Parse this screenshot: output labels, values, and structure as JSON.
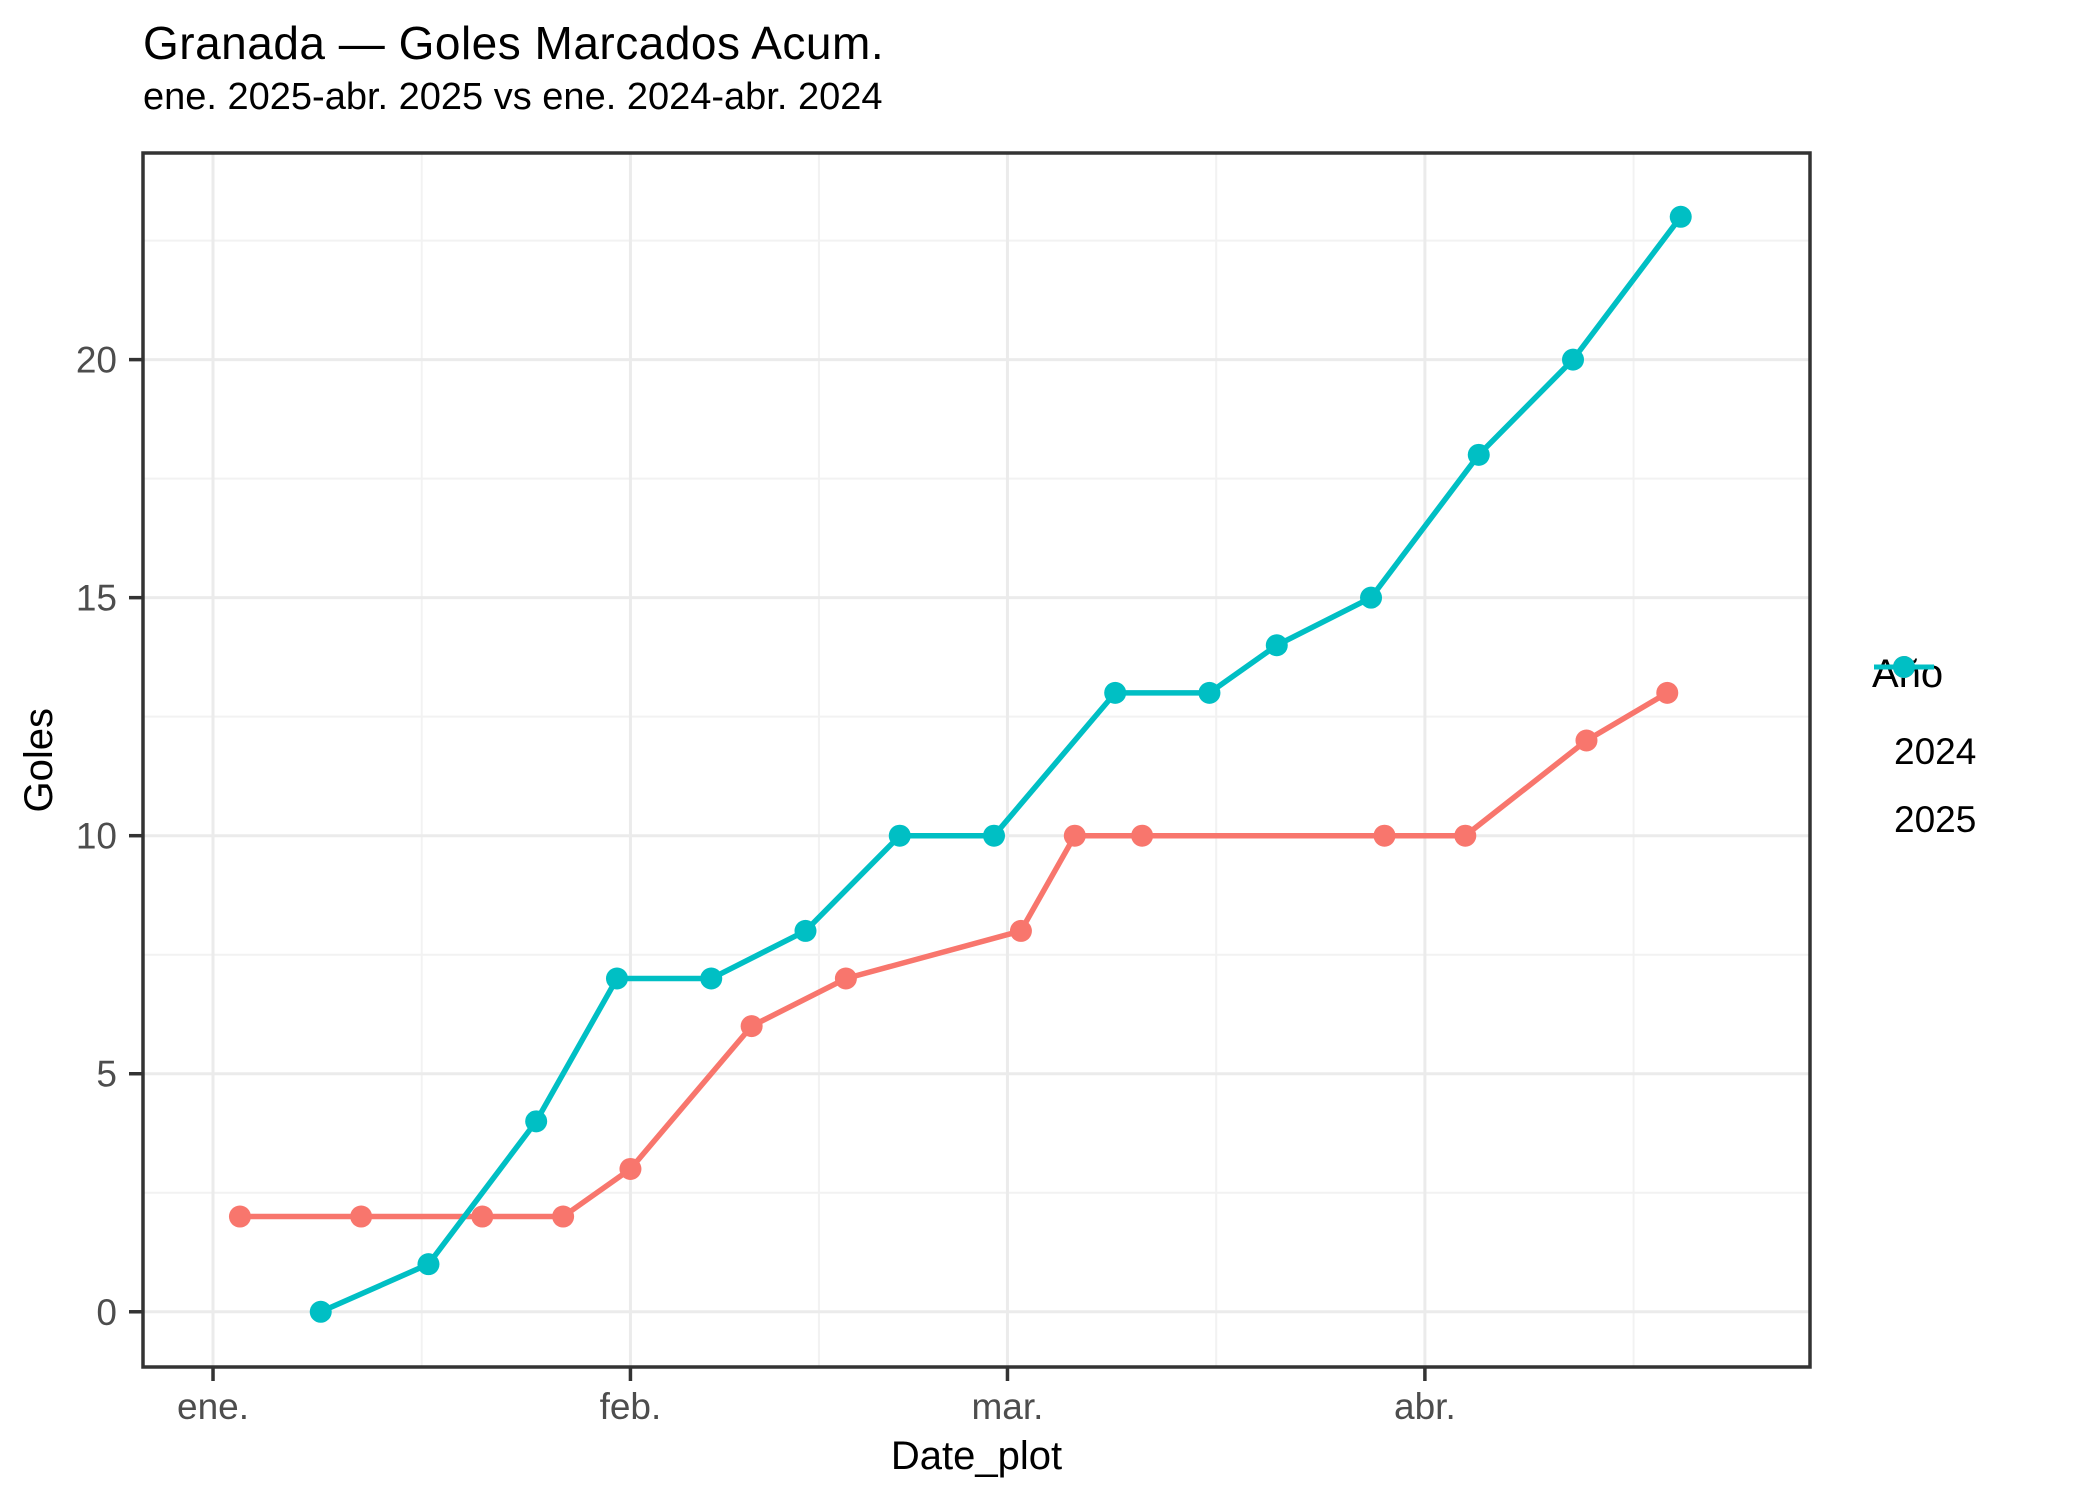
{
  "title": "Granada — Goles Marcados Acum.",
  "subtitle": "ene. 2025-abr. 2025 vs ene. 2024-abr. 2024",
  "chart_data": {
    "type": "line",
    "title": "Granada — Goles Marcados Acum.",
    "subtitle": "ene. 2025-abr. 2025 vs ene. 2024-abr. 2024",
    "xlabel": "Date_plot",
    "ylabel": "Goles",
    "x_ticks": [
      "ene.",
      "feb.",
      "mar.",
      "abr."
    ],
    "y_ticks": [
      0,
      5,
      10,
      15,
      20
    ],
    "grid": "major+minor",
    "legend": {
      "title": "Año",
      "position": "right",
      "entries": [
        {
          "label": "2024",
          "color": "#F8766D"
        },
        {
          "label": "2025",
          "color": "#00BFC4"
        }
      ]
    },
    "axes": {
      "x_unit": "days since Jan 1",
      "x_domain_days": [
        -5.2,
        118.6
      ],
      "x_major_days": [
        0,
        31,
        59,
        90
      ],
      "x_minor_days": [
        15.5,
        45,
        74.5,
        105.5
      ],
      "y_domain": [
        -1.16,
        24.34
      ],
      "y_major": [
        0,
        5,
        10,
        15,
        20
      ],
      "y_minor": [
        2.5,
        7.5,
        12.5,
        17.5,
        22.5
      ]
    },
    "series": [
      {
        "name": "2024",
        "color": "#F8766D",
        "points": [
          {
            "date": "3 ene",
            "day": 2,
            "value": 2
          },
          {
            "date": "12 ene",
            "day": 11,
            "value": 2
          },
          {
            "date": "21 ene",
            "day": 20,
            "value": 2
          },
          {
            "date": "27 ene",
            "day": 26,
            "value": 2
          },
          {
            "date": "1 feb",
            "day": 31,
            "value": 3
          },
          {
            "date": "10 feb",
            "day": 40,
            "value": 6
          },
          {
            "date": "17 feb",
            "day": 47,
            "value": 7
          },
          {
            "date": "2 mar",
            "day": 60,
            "value": 8
          },
          {
            "date": "6 mar",
            "day": 64,
            "value": 10
          },
          {
            "date": "11 mar",
            "day": 69,
            "value": 10
          },
          {
            "date": "29 mar",
            "day": 87,
            "value": 10
          },
          {
            "date": "4 abr",
            "day": 93,
            "value": 10
          },
          {
            "date": "13 abr",
            "day": 102,
            "value": 12
          },
          {
            "date": "19 abr",
            "day": 108,
            "value": 13
          }
        ]
      },
      {
        "name": "2025",
        "color": "#00BFC4",
        "points": [
          {
            "date": "9 ene",
            "day": 8,
            "value": 0
          },
          {
            "date": "17 ene",
            "day": 16,
            "value": 1
          },
          {
            "date": "25 ene",
            "day": 24,
            "value": 4
          },
          {
            "date": "31 ene",
            "day": 30,
            "value": 7
          },
          {
            "date": "7 feb",
            "day": 37,
            "value": 7
          },
          {
            "date": "14 feb",
            "day": 44,
            "value": 8
          },
          {
            "date": "21 feb",
            "day": 51,
            "value": 10
          },
          {
            "date": "28 feb",
            "day": 58,
            "value": 10
          },
          {
            "date": "9 mar",
            "day": 67,
            "value": 13
          },
          {
            "date": "16 mar",
            "day": 74,
            "value": 13
          },
          {
            "date": "21 mar",
            "day": 79,
            "value": 14
          },
          {
            "date": "28 mar",
            "day": 86,
            "value": 15
          },
          {
            "date": "5 abr",
            "day": 94,
            "value": 18
          },
          {
            "date": "12 abr",
            "day": 101,
            "value": 20
          },
          {
            "date": "20 abr",
            "day": 109,
            "value": 23
          }
        ]
      }
    ]
  },
  "colors": {
    "background": "#FFFFFF",
    "panel_border": "#333333",
    "grid_major": "#EBEBEB",
    "grid_minor": "#F2F2F2",
    "tick_mark": "#333333",
    "tick_text": "#4D4D4D",
    "text": "#000000",
    "series_2024": "#F8766D",
    "series_2025": "#00BFC4"
  }
}
